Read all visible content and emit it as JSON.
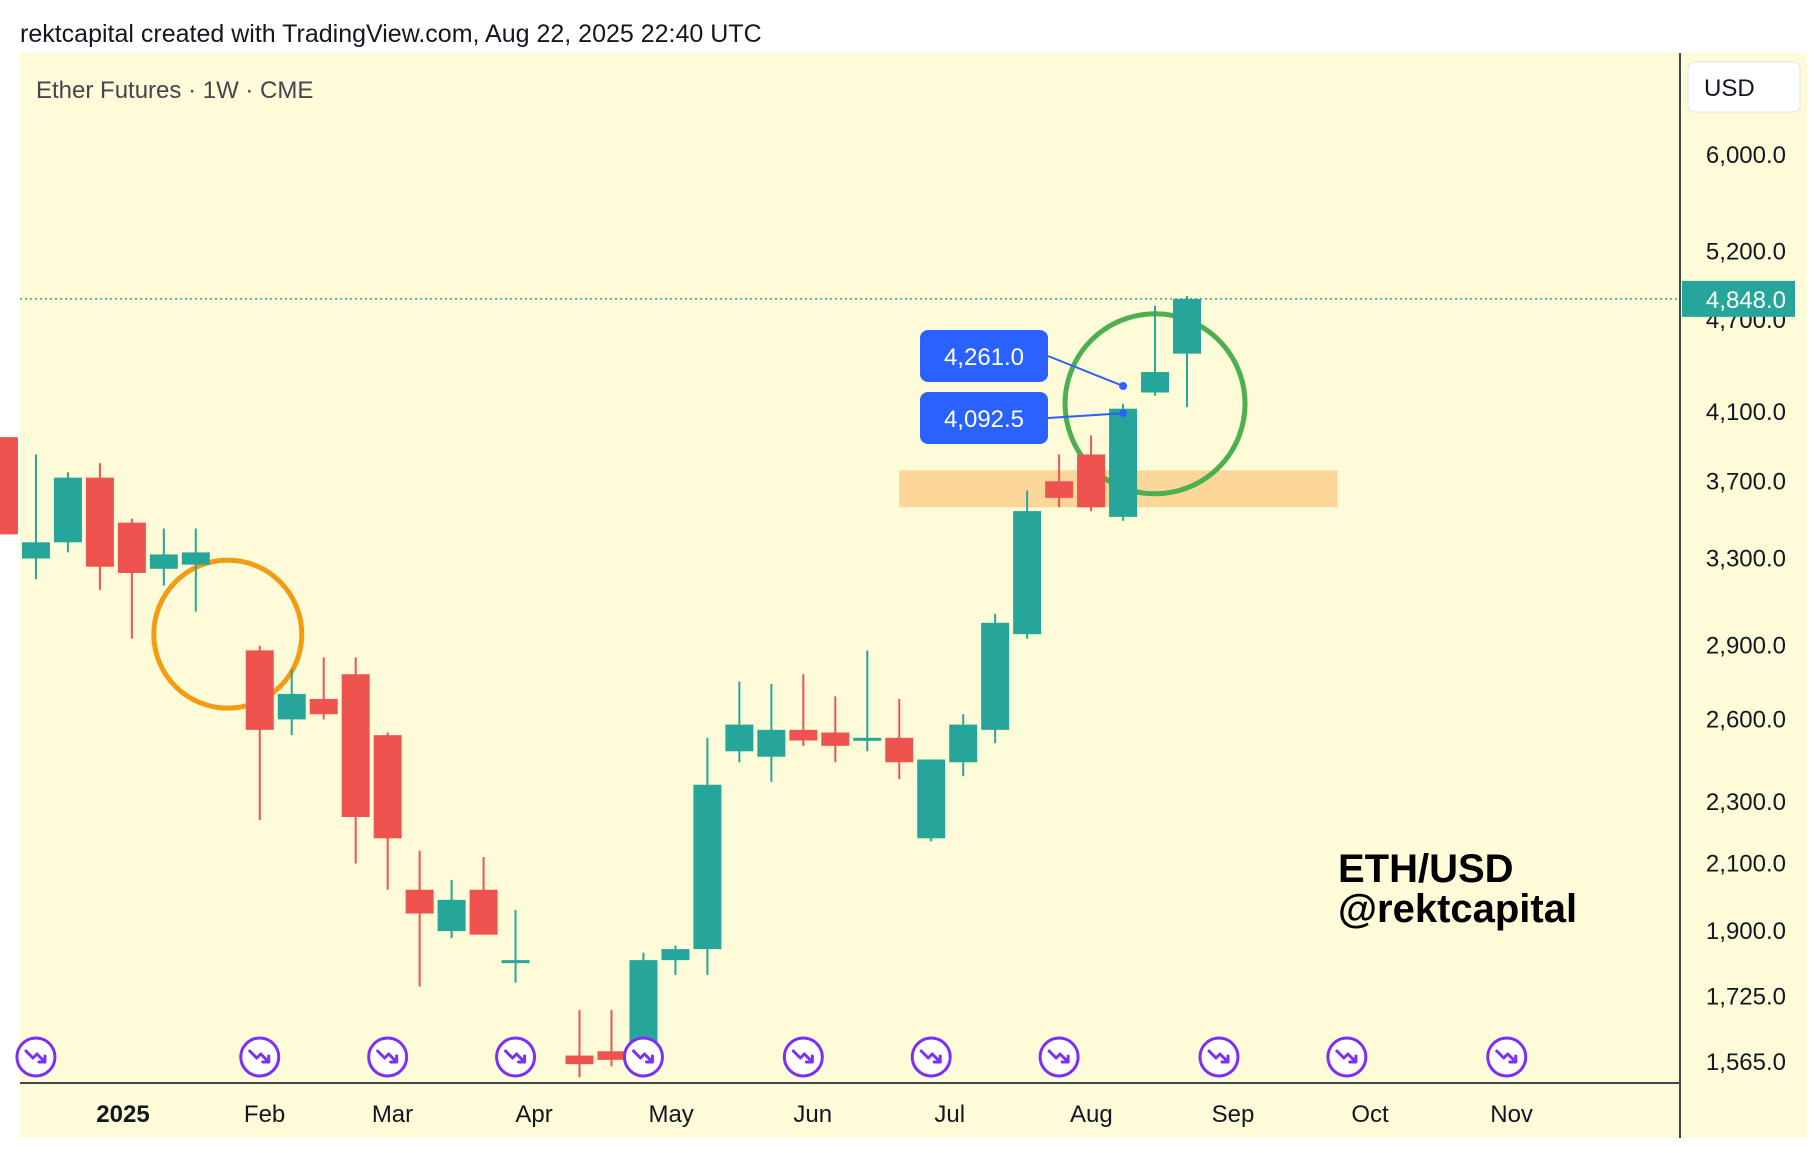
{
  "header": {
    "attribution": "rektcapital created with TradingView.com, Aug 22, 2025 22:40 UTC"
  },
  "legend": {
    "symbol_text": "Ether Futures · 1W · CME"
  },
  "currency_button": {
    "label": "USD"
  },
  "watermark": {
    "line1": "ETH/USD",
    "line2": "@rektcapital"
  },
  "colors": {
    "background": "#fdfbd8",
    "bull": "#26a69a",
    "bear": "#ef5350",
    "label_blue": "#2962ff",
    "orange_circle": "#f39c12",
    "green_circle": "#4caf50",
    "zone": "#fdd69a",
    "event_icon": "#7b2ff7"
  },
  "chart_data": {
    "type": "candlestick",
    "title": "Ether Futures · 1W · CME",
    "y_scale": "log",
    "ylim": [
      1500,
      6400
    ],
    "y_ticks": [
      "6,000.0",
      "5,200.0",
      "4,700.0",
      "4,100.0",
      "3,700.0",
      "3,300.0",
      "2,900.0",
      "2,600.0",
      "2,300.0",
      "2,100.0",
      "1,900.0",
      "1,725.0",
      "1,565.0"
    ],
    "y_tick_values": [
      6000,
      5200,
      4700,
      4100,
      3700,
      3300,
      2900,
      2600,
      2300,
      2100,
      1900,
      1725,
      1565
    ],
    "x_ticks": [
      {
        "label": "2025",
        "date": "2025-01-01",
        "bold": true
      },
      {
        "label": "Feb",
        "date": "2025-02-01"
      },
      {
        "label": "Mar",
        "date": "2025-03-01"
      },
      {
        "label": "Apr",
        "date": "2025-04-01"
      },
      {
        "label": "May",
        "date": "2025-05-01"
      },
      {
        "label": "Jun",
        "date": "2025-06-01"
      },
      {
        "label": "Jul",
        "date": "2025-07-01"
      },
      {
        "label": "Aug",
        "date": "2025-08-01"
      },
      {
        "label": "Sep",
        "date": "2025-09-01"
      },
      {
        "label": "Oct",
        "date": "2025-10-01"
      },
      {
        "label": "Nov",
        "date": "2025-11-01"
      }
    ],
    "candles": [
      {
        "date": "2024-12-02",
        "open": 3950,
        "high": 3950,
        "low": 3420,
        "close": 3420
      },
      {
        "date": "2024-12-09",
        "open": 3300,
        "high": 3850,
        "low": 3200,
        "close": 3380
      },
      {
        "date": "2024-12-16",
        "open": 3380,
        "high": 3750,
        "low": 3330,
        "close": 3720
      },
      {
        "date": "2024-12-23",
        "open": 3720,
        "high": 3800,
        "low": 3150,
        "close": 3260
      },
      {
        "date": "2024-12-30",
        "open": 3480,
        "high": 3500,
        "low": 2930,
        "close": 3230
      },
      {
        "date": "2025-01-06",
        "open": 3250,
        "high": 3450,
        "low": 3170,
        "close": 3320
      },
      {
        "date": "2025-01-13",
        "open": 3270,
        "high": 3450,
        "low": 3050,
        "close": 3330
      },
      {
        "date": "2025-01-27",
        "open": 2880,
        "high": 2900,
        "low": 2240,
        "close": 2560
      },
      {
        "date": "2025-02-03",
        "open": 2600,
        "high": 2800,
        "low": 2540,
        "close": 2700
      },
      {
        "date": "2025-02-10",
        "open": 2680,
        "high": 2850,
        "low": 2600,
        "close": 2620
      },
      {
        "date": "2025-02-17",
        "open": 2780,
        "high": 2850,
        "low": 2100,
        "close": 2250
      },
      {
        "date": "2025-02-24",
        "open": 2540,
        "high": 2550,
        "low": 2020,
        "close": 2180
      },
      {
        "date": "2025-03-03",
        "open": 2020,
        "high": 2140,
        "low": 1750,
        "close": 1950
      },
      {
        "date": "2025-03-10",
        "open": 1900,
        "high": 2050,
        "low": 1880,
        "close": 1990
      },
      {
        "date": "2025-03-17",
        "open": 2020,
        "high": 2120,
        "low": 1890,
        "close": 1890
      },
      {
        "date": "2025-03-24",
        "open": 1820,
        "high": 1960,
        "low": 1760,
        "close": 1820
      },
      {
        "date": "2025-04-07",
        "open": 1580,
        "high": 1690,
        "low": 1530,
        "close": 1560
      },
      {
        "date": "2025-04-14",
        "open": 1590,
        "high": 1690,
        "low": 1555,
        "close": 1570
      },
      {
        "date": "2025-04-21",
        "open": 1610,
        "high": 1840,
        "low": 1600,
        "close": 1820
      },
      {
        "date": "2025-04-28",
        "open": 1820,
        "high": 1860,
        "low": 1780,
        "close": 1850
      },
      {
        "date": "2025-05-05",
        "open": 1850,
        "high": 2530,
        "low": 1780,
        "close": 2360
      },
      {
        "date": "2025-05-12",
        "open": 2480,
        "high": 2750,
        "low": 2440,
        "close": 2580
      },
      {
        "date": "2025-05-19",
        "open": 2460,
        "high": 2740,
        "low": 2370,
        "close": 2560
      },
      {
        "date": "2025-05-26",
        "open": 2560,
        "high": 2780,
        "low": 2500,
        "close": 2520
      },
      {
        "date": "2025-06-02",
        "open": 2550,
        "high": 2690,
        "low": 2440,
        "close": 2500
      },
      {
        "date": "2025-06-09",
        "open": 2530,
        "high": 2880,
        "low": 2480,
        "close": 2530
      },
      {
        "date": "2025-06-16",
        "open": 2530,
        "high": 2680,
        "low": 2380,
        "close": 2440
      },
      {
        "date": "2025-06-23",
        "open": 2180,
        "high": 2450,
        "low": 2170,
        "close": 2450
      },
      {
        "date": "2025-06-30",
        "open": 2440,
        "high": 2620,
        "low": 2390,
        "close": 2580
      },
      {
        "date": "2025-07-07",
        "open": 2560,
        "high": 3040,
        "low": 2510,
        "close": 3000
      },
      {
        "date": "2025-07-14",
        "open": 2950,
        "high": 3650,
        "low": 2930,
        "close": 3540
      },
      {
        "date": "2025-07-21",
        "open": 3700,
        "high": 3850,
        "low": 3560,
        "close": 3610
      },
      {
        "date": "2025-07-28",
        "open": 3850,
        "high": 3960,
        "low": 3540,
        "close": 3560
      },
      {
        "date": "2025-08-04",
        "open": 3510,
        "high": 4150,
        "low": 3490,
        "close": 4120
      },
      {
        "date": "2025-08-11",
        "open": 4220,
        "high": 4800,
        "low": 4200,
        "close": 4350
      },
      {
        "date": "2025-08-18",
        "open": 4470,
        "high": 4870,
        "low": 4130,
        "close": 4848
      }
    ],
    "current_price": {
      "value": 4848,
      "label": "4,848.0"
    },
    "price_labels": [
      {
        "label": "4,261.0",
        "value": 4261,
        "date": "2025-08-04"
      },
      {
        "label": "4,092.5",
        "value": 4092.5,
        "date": "2025-08-04"
      }
    ],
    "zone": {
      "from_date": "2025-06-16",
      "to_date": "2025-09-20",
      "low": 3560,
      "high": 3760
    },
    "annotations": [
      {
        "type": "circle",
        "color": "orange",
        "date": "2025-01-20",
        "price": 2950
      },
      {
        "type": "circle",
        "color": "green",
        "date": "2025-08-11",
        "price": 4150
      }
    ],
    "event_icon_dates": [
      "2024-12-09",
      "2025-01-27",
      "2025-02-24",
      "2025-03-24",
      "2025-04-21",
      "2025-05-26",
      "2025-06-23",
      "2025-07-21",
      "2025-08-25",
      "2025-09-22",
      "2025-10-27"
    ]
  }
}
